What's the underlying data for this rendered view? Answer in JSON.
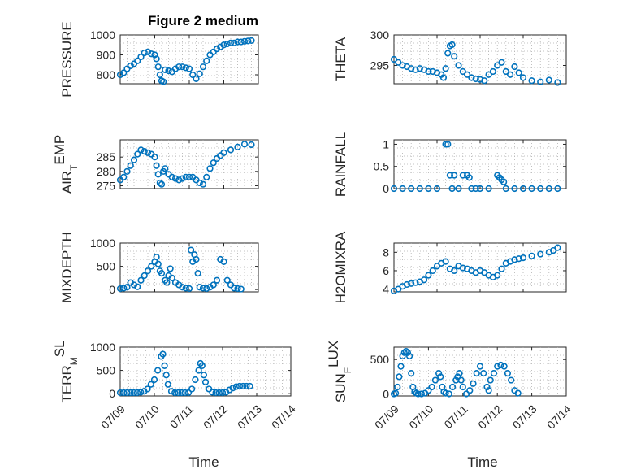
{
  "figure": {
    "title": "Figure 2 medium",
    "marker_color": "#0072BD"
  },
  "chart_data": [
    {
      "type": "scatter",
      "name": "PRESSURE",
      "title": "Figure 2 medium",
      "ylabel": "PRESSURE",
      "ylabel_sub": "",
      "xlabel": "",
      "ylim": [
        755,
        1000
      ],
      "yticks": [
        800,
        900,
        1000
      ],
      "yticklabels": [
        "800",
        "900",
        "1000"
      ],
      "xticklabels": [],
      "grid": true,
      "x": [
        0,
        0.1,
        0.2,
        0.3,
        0.4,
        0.5,
        0.6,
        0.7,
        0.8,
        0.9,
        1.0,
        1.05,
        1.1,
        1.15,
        1.2,
        1.25,
        1.3,
        1.4,
        1.5,
        1.6,
        1.7,
        1.8,
        1.9,
        2.0,
        2.1,
        2.2,
        2.3,
        2.4,
        2.5,
        2.6,
        2.7,
        2.8,
        2.9,
        3.0,
        3.1,
        3.2,
        3.3,
        3.4,
        3.5,
        3.6,
        3.7,
        3.8
      ],
      "y": [
        800,
        810,
        830,
        845,
        855,
        870,
        890,
        910,
        915,
        905,
        900,
        880,
        840,
        800,
        770,
        765,
        825,
        820,
        815,
        830,
        840,
        840,
        835,
        830,
        800,
        780,
        805,
        840,
        870,
        900,
        915,
        930,
        940,
        950,
        955,
        960,
        960,
        965,
        965,
        968,
        970,
        972
      ]
    },
    {
      "type": "scatter",
      "name": "THETA",
      "title": "",
      "ylabel": "THETA",
      "ylabel_sub": "",
      "xlabel": "",
      "ylim": [
        292,
        300
      ],
      "yticks": [
        295,
        300
      ],
      "yticklabels": [
        "295",
        "300"
      ],
      "xticklabels": [],
      "grid": true,
      "x": [
        0,
        0.1,
        0.2,
        0.3,
        0.4,
        0.5,
        0.6,
        0.7,
        0.8,
        0.9,
        1.0,
        1.1,
        1.15,
        1.2,
        1.25,
        1.3,
        1.35,
        1.4,
        1.5,
        1.6,
        1.7,
        1.8,
        1.9,
        2.0,
        2.1,
        2.2,
        2.3,
        2.4,
        2.5,
        2.6,
        2.7,
        2.8,
        2.9,
        3.0,
        3.2,
        3.4,
        3.6,
        3.8
      ],
      "y": [
        296,
        295.5,
        295,
        294.8,
        294.5,
        294.3,
        294.5,
        294.3,
        294,
        294,
        293.8,
        293.5,
        293,
        294.5,
        297,
        298.2,
        298.4,
        296.5,
        295,
        294,
        293.5,
        293,
        292.8,
        292.7,
        292.5,
        293.5,
        294,
        295,
        295.5,
        294,
        293.5,
        294.8,
        293.8,
        293,
        292.5,
        292.3,
        292.6,
        292.2
      ]
    },
    {
      "type": "scatter",
      "name": "AIR_TEMP",
      "title": "",
      "ylabel": "AIR",
      "ylabel_sub": "T",
      "ylabel_tail": "EMP",
      "xlabel": "",
      "ylim": [
        274,
        291
      ],
      "yticks": [
        275,
        280,
        285
      ],
      "yticklabels": [
        "275",
        "280",
        "285"
      ],
      "xticklabels": [],
      "grid": true,
      "x": [
        0,
        0.1,
        0.2,
        0.3,
        0.4,
        0.5,
        0.6,
        0.7,
        0.8,
        0.9,
        1.0,
        1.05,
        1.1,
        1.15,
        1.2,
        1.25,
        1.3,
        1.4,
        1.5,
        1.6,
        1.7,
        1.8,
        1.9,
        2.0,
        2.1,
        2.2,
        2.3,
        2.4,
        2.5,
        2.6,
        2.7,
        2.8,
        2.9,
        3.0,
        3.2,
        3.4,
        3.6,
        3.8
      ],
      "y": [
        277,
        278,
        280,
        282,
        284,
        286,
        287.5,
        287,
        286.5,
        286,
        285,
        282,
        279,
        276,
        275.5,
        280,
        281,
        279,
        278,
        277.5,
        277,
        277.5,
        278,
        278,
        278,
        277,
        276,
        275.5,
        278,
        281,
        283,
        284.5,
        285.5,
        286.5,
        287.5,
        288.5,
        289.5,
        289.3
      ]
    },
    {
      "type": "scatter",
      "name": "RAINFALL",
      "title": "",
      "ylabel": "RAINFALL",
      "ylabel_sub": "",
      "xlabel": "",
      "ylim": [
        0,
        1.1
      ],
      "yticks": [
        0,
        0.5,
        1
      ],
      "yticklabels": [
        "0",
        "0.5",
        "1"
      ],
      "xticklabels": [],
      "grid": true,
      "x": [
        0,
        0.2,
        0.4,
        0.6,
        0.8,
        1.0,
        1.2,
        1.25,
        1.3,
        1.35,
        1.4,
        1.5,
        1.6,
        1.7,
        1.75,
        1.8,
        1.9,
        2.0,
        2.2,
        2.4,
        2.45,
        2.5,
        2.55,
        2.6,
        2.8,
        3.0,
        3.2,
        3.4,
        3.6,
        3.8
      ],
      "y": [
        0,
        0,
        0,
        0,
        0,
        0,
        1.0,
        1.0,
        0.3,
        0,
        0.3,
        0,
        0.3,
        0.3,
        0.25,
        0,
        0,
        0,
        0,
        0.3,
        0.25,
        0.2,
        0.15,
        0,
        0,
        0,
        0,
        0,
        0,
        0
      ]
    },
    {
      "type": "scatter",
      "name": "MIXDEPTH",
      "title": "",
      "ylabel": "MIXDEPTH",
      "ylabel_sub": "",
      "xlabel": "",
      "ylim": [
        -50,
        1000
      ],
      "yticks": [
        0,
        500,
        1000
      ],
      "yticklabels": [
        "0",
        "500",
        "1000"
      ],
      "xticklabels": [],
      "grid": true,
      "x": [
        0,
        0.1,
        0.2,
        0.3,
        0.4,
        0.5,
        0.6,
        0.7,
        0.8,
        0.9,
        1.0,
        1.05,
        1.1,
        1.15,
        1.2,
        1.3,
        1.35,
        1.4,
        1.45,
        1.5,
        1.6,
        1.7,
        1.8,
        1.9,
        2.0,
        2.05,
        2.1,
        2.15,
        2.2,
        2.25,
        2.3,
        2.4,
        2.5,
        2.6,
        2.7,
        2.8,
        2.9,
        3.0,
        3.1,
        3.2,
        3.3,
        3.4,
        3.5
      ],
      "y": [
        20,
        30,
        50,
        150,
        100,
        60,
        200,
        300,
        400,
        500,
        600,
        700,
        550,
        400,
        350,
        200,
        150,
        300,
        450,
        250,
        150,
        100,
        50,
        30,
        20,
        850,
        600,
        750,
        650,
        350,
        50,
        30,
        20,
        50,
        100,
        200,
        650,
        600,
        200,
        100,
        30,
        20,
        10
      ]
    },
    {
      "type": "scatter",
      "name": "H2OMIXRA",
      "title": "",
      "ylabel": "H2OMIXRA",
      "ylabel_sub": "",
      "xlabel": "",
      "ylim": [
        3.7,
        9
      ],
      "yticks": [
        4,
        6,
        8
      ],
      "yticklabels": [
        "4",
        "6",
        "8"
      ],
      "xticklabels": [],
      "grid": true,
      "x": [
        0,
        0.1,
        0.2,
        0.3,
        0.4,
        0.5,
        0.6,
        0.7,
        0.8,
        0.9,
        1.0,
        1.1,
        1.2,
        1.3,
        1.4,
        1.5,
        1.6,
        1.7,
        1.8,
        1.9,
        2.0,
        2.1,
        2.2,
        2.3,
        2.4,
        2.5,
        2.6,
        2.7,
        2.8,
        2.9,
        3.0,
        3.2,
        3.4,
        3.6,
        3.7,
        3.8
      ],
      "y": [
        3.8,
        4.0,
        4.3,
        4.5,
        4.6,
        4.7,
        4.8,
        5.0,
        5.5,
        6.0,
        6.5,
        6.8,
        7.0,
        6.2,
        6.0,
        6.5,
        6.3,
        6.2,
        6.0,
        5.8,
        6.0,
        5.8,
        5.5,
        5.3,
        5.5,
        6.2,
        6.8,
        7.0,
        7.2,
        7.3,
        7.4,
        7.6,
        7.8,
        8.0,
        8.2,
        8.5
      ]
    },
    {
      "type": "scatter",
      "name": "TERR_MSL",
      "title": "",
      "ylabel": "TERR",
      "ylabel_sub": "M",
      "ylabel_tail": "SL",
      "xlabel": "Time",
      "ylim": [
        -50,
        1000
      ],
      "yticks": [
        0,
        500,
        1000
      ],
      "yticklabels": [
        "0",
        "500",
        "1000"
      ],
      "xlim": [
        0,
        5
      ],
      "xticks": [
        0,
        1,
        2,
        3,
        4,
        5
      ],
      "xticklabels": [
        "07/09",
        "07/10",
        "07/11",
        "07/12",
        "07/13",
        "07/14"
      ],
      "grid": true,
      "x": [
        0,
        0.1,
        0.2,
        0.3,
        0.4,
        0.5,
        0.6,
        0.7,
        0.8,
        0.9,
        1.0,
        1.1,
        1.2,
        1.25,
        1.3,
        1.35,
        1.4,
        1.5,
        1.6,
        1.7,
        1.8,
        1.9,
        2.0,
        2.1,
        2.2,
        2.3,
        2.35,
        2.4,
        2.45,
        2.5,
        2.6,
        2.7,
        2.8,
        2.9,
        3.0,
        3.1,
        3.2,
        3.3,
        3.4,
        3.5,
        3.6,
        3.7,
        3.8
      ],
      "y": [
        20,
        20,
        20,
        20,
        20,
        20,
        30,
        50,
        100,
        200,
        300,
        500,
        800,
        850,
        600,
        400,
        200,
        50,
        20,
        20,
        20,
        20,
        20,
        100,
        300,
        500,
        650,
        600,
        400,
        250,
        100,
        30,
        20,
        20,
        20,
        30,
        80,
        120,
        150,
        160,
        160,
        160,
        160
      ]
    },
    {
      "type": "scatter",
      "name": "SUN_FLUX",
      "title": "",
      "ylabel": "SUN",
      "ylabel_sub": "F",
      "ylabel_tail": "LUX",
      "xlabel": "Time",
      "ylim": [
        -30,
        680
      ],
      "yticks": [
        0,
        500
      ],
      "yticklabels": [
        "0",
        "500"
      ],
      "xlim": [
        0,
        5
      ],
      "xticks": [
        0,
        1,
        2,
        3,
        4,
        5
      ],
      "xticklabels": [
        "07/09",
        "07/10",
        "07/11",
        "07/12",
        "07/13",
        "07/14"
      ],
      "grid": true,
      "x": [
        0,
        0.05,
        0.1,
        0.15,
        0.2,
        0.25,
        0.3,
        0.35,
        0.4,
        0.45,
        0.5,
        0.55,
        0.6,
        0.65,
        0.7,
        0.8,
        0.9,
        1.0,
        1.1,
        1.2,
        1.3,
        1.35,
        1.4,
        1.45,
        1.5,
        1.6,
        1.7,
        1.8,
        1.85,
        1.9,
        1.95,
        2.0,
        2.1,
        2.2,
        2.3,
        2.4,
        2.5,
        2.6,
        2.7,
        2.75,
        2.8,
        2.9,
        3.0,
        3.1,
        3.2,
        3.3,
        3.4,
        3.5,
        3.6
      ],
      "y": [
        0,
        10,
        100,
        250,
        400,
        550,
        600,
        620,
        600,
        550,
        300,
        100,
        30,
        10,
        0,
        0,
        10,
        50,
        100,
        200,
        300,
        250,
        100,
        30,
        10,
        0,
        100,
        200,
        250,
        300,
        200,
        100,
        0,
        50,
        150,
        300,
        400,
        300,
        100,
        50,
        200,
        300,
        400,
        420,
        400,
        300,
        200,
        50,
        10
      ]
    }
  ]
}
